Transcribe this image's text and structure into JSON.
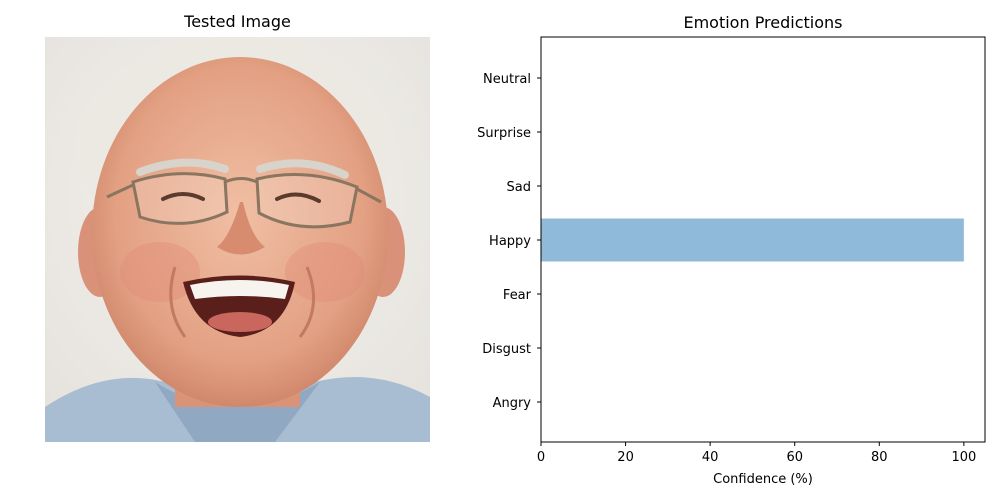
{
  "left_panel": {
    "title": "Tested Image"
  },
  "chart_data": {
    "type": "bar",
    "orientation": "horizontal",
    "title": "Emotion Predictions",
    "xlabel": "Confidence (%)",
    "ylabel": "",
    "categories": [
      "Angry",
      "Disgust",
      "Fear",
      "Happy",
      "Sad",
      "Surprise",
      "Neutral"
    ],
    "values": [
      0,
      0,
      0,
      100,
      0,
      0,
      0
    ],
    "xlim": [
      0,
      105
    ],
    "xticks": [
      0,
      20,
      40,
      60,
      80,
      100
    ],
    "bar_color": "#8fbad9",
    "grid": false
  }
}
